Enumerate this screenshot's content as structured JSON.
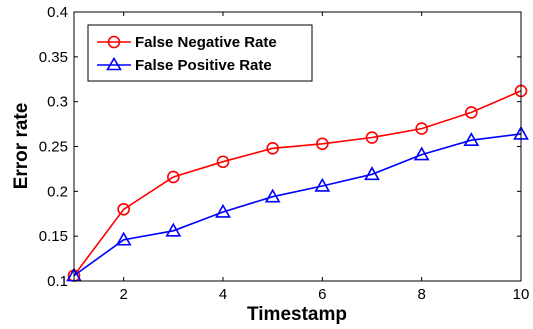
{
  "chart_data": {
    "type": "line",
    "title": "",
    "xlabel": "Timestamp",
    "ylabel": "Error rate",
    "xlim": [
      1,
      10
    ],
    "ylim": [
      0.1,
      0.4
    ],
    "x_ticks": [
      2,
      4,
      6,
      8,
      10
    ],
    "y_ticks": [
      0.1,
      0.15,
      0.2,
      0.25,
      0.3,
      0.35,
      0.4
    ],
    "y_tick_labels": [
      "0.1",
      "0.15",
      "0.2",
      "0.25",
      "0.3",
      "0.35",
      "0.4"
    ],
    "grid": false,
    "legend_position": "top-left",
    "x": [
      1,
      2,
      3,
      4,
      5,
      6,
      7,
      8,
      9,
      10
    ],
    "series": [
      {
        "name": "False Negative Rate",
        "color": "#ff0000",
        "marker": "circle",
        "values": [
          0.106,
          0.18,
          0.216,
          0.233,
          0.248,
          0.253,
          0.26,
          0.27,
          0.288,
          0.312
        ]
      },
      {
        "name": "False Positive Rate",
        "color": "#0000ff",
        "marker": "triangle",
        "values": [
          0.106,
          0.146,
          0.156,
          0.177,
          0.194,
          0.206,
          0.219,
          0.241,
          0.257,
          0.264
        ]
      }
    ]
  }
}
